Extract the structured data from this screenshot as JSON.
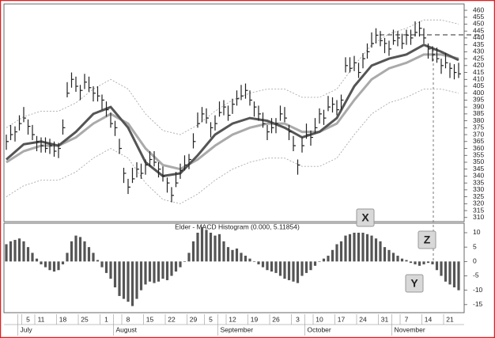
{
  "chart_data": [
    {
      "type": "ohlc",
      "x": [
        0,
        1,
        2,
        3,
        4,
        5,
        6,
        7,
        8,
        9,
        10,
        11,
        12,
        13,
        14,
        15,
        16,
        17,
        18,
        19,
        20,
        21,
        22,
        23,
        24,
        25,
        26,
        27,
        28,
        29,
        30,
        31,
        32,
        33,
        34,
        35,
        36,
        37,
        38,
        39,
        40,
        41,
        42,
        43,
        44,
        45,
        46,
        47,
        48,
        49,
        50,
        51,
        52,
        53,
        54,
        55,
        56,
        57,
        58,
        59,
        60,
        61,
        62,
        63,
        64,
        65,
        66,
        67,
        68,
        69,
        70,
        71,
        72,
        73,
        74,
        75,
        76,
        77,
        78,
        79,
        80,
        81,
        82,
        83,
        84,
        85,
        86,
        87,
        88,
        89,
        90,
        91,
        92,
        93,
        94,
        95,
        96,
        97,
        98,
        99,
        100,
        101,
        102,
        103,
        104
      ],
      "high": [
        370,
        377,
        376,
        384,
        390,
        381,
        377,
        369,
        368,
        368,
        367,
        365,
        364,
        381,
        408,
        415,
        412,
        406,
        414,
        412,
        405,
        405,
        399,
        394,
        386,
        380,
        367,
        346,
        338,
        346,
        350,
        349,
        352,
        358,
        358,
        350,
        347,
        339,
        332,
        343,
        349,
        355,
        356,
        371,
        386,
        390,
        389,
        379,
        384,
        394,
        395,
        391,
        396,
        402,
        406,
        407,
        402,
        394,
        391,
        386,
        377,
        382,
        382,
        391,
        390,
        377,
        369,
        352,
        368,
        378,
        373,
        382,
        389,
        388,
        398,
        397,
        395,
        399,
        426,
        426,
        427,
        422,
        429,
        436,
        444,
        447,
        445,
        440,
        438,
        446,
        445,
        443,
        446,
        446,
        452,
        452,
        447,
        436,
        434,
        433,
        425,
        429,
        422,
        421,
        422
      ],
      "low": [
        359,
        366,
        365,
        373,
        379,
        370,
        366,
        358,
        357,
        357,
        356,
        354,
        353,
        370,
        397,
        404,
        401,
        395,
        403,
        401,
        394,
        394,
        388,
        383,
        375,
        369,
        356,
        335,
        327,
        335,
        339,
        338,
        341,
        347,
        347,
        339,
        336,
        328,
        321,
        332,
        338,
        344,
        345,
        360,
        375,
        379,
        378,
        368,
        373,
        383,
        384,
        380,
        385,
        391,
        395,
        396,
        391,
        383,
        380,
        375,
        366,
        371,
        371,
        380,
        379,
        366,
        358,
        341,
        357,
        367,
        362,
        371,
        378,
        377,
        387,
        386,
        384,
        388,
        415,
        415,
        416,
        411,
        418,
        425,
        433,
        436,
        434,
        429,
        427,
        435,
        434,
        432,
        435,
        435,
        441,
        441,
        436,
        425,
        423,
        422,
        414,
        418,
        411,
        410,
        411
      ],
      "close": [
        365,
        370,
        372,
        378,
        382,
        376,
        370,
        365,
        362,
        360,
        362,
        358,
        360,
        375,
        400,
        410,
        405,
        402,
        408,
        404,
        400,
        398,
        395,
        388,
        378,
        375,
        360,
        342,
        332,
        338,
        345,
        342,
        348,
        352,
        350,
        345,
        340,
        335,
        326,
        335,
        344,
        348,
        352,
        365,
        378,
        385,
        382,
        375,
        378,
        386,
        390,
        384,
        392,
        396,
        398,
        402,
        395,
        390,
        385,
        378,
        372,
        375,
        378,
        385,
        382,
        372,
        362,
        348,
        362,
        370,
        368,
        375,
        385,
        382,
        390,
        392,
        388,
        395,
        420,
        418,
        422,
        415,
        425,
        430,
        436,
        442,
        438,
        436,
        432,
        438,
        440,
        436,
        442,
        440,
        444,
        447,
        440,
        432,
        428,
        425,
        420,
        422,
        418,
        415,
        414
      ],
      "color": "#222",
      "series": [
        {
          "color": "#aaa",
          "style": "dotted",
          "x": [
            0,
            4,
            8,
            12,
            16,
            20,
            24,
            28,
            32,
            36,
            40,
            44,
            48,
            52,
            56,
            60,
            64,
            68,
            72,
            76,
            80,
            84,
            88,
            92,
            96,
            100,
            104
          ],
          "values": [
            375,
            383,
            387,
            387,
            393,
            403,
            410,
            403,
            385,
            373,
            370,
            377,
            387,
            395,
            400,
            403,
            403,
            397,
            397,
            403,
            420,
            435,
            443,
            447,
            453,
            453,
            450
          ]
        },
        {
          "color": "#aaa",
          "style": "dotted",
          "x": [
            0,
            4,
            8,
            12,
            16,
            20,
            24,
            28,
            32,
            36,
            40,
            44,
            48,
            52,
            56,
            60,
            64,
            68,
            72,
            76,
            80,
            84,
            88,
            92,
            96,
            100,
            104
          ],
          "values": [
            325,
            333,
            337,
            337,
            343,
            353,
            360,
            353,
            335,
            323,
            320,
            327,
            337,
            345,
            350,
            353,
            353,
            347,
            347,
            353,
            370,
            385,
            393,
            397,
            403,
            403,
            400
          ]
        },
        {
          "color": "#aaa",
          "style": "solid",
          "x": [
            0,
            4,
            8,
            12,
            16,
            20,
            24,
            28,
            32,
            36,
            40,
            44,
            48,
            52,
            56,
            60,
            64,
            68,
            72,
            76,
            80,
            84,
            88,
            92,
            96,
            100,
            104
          ],
          "values": [
            350,
            358,
            362,
            362,
            368,
            378,
            385,
            378,
            360,
            348,
            345,
            352,
            362,
            370,
            375,
            378,
            378,
            372,
            372,
            378,
            395,
            410,
            418,
            422,
            428,
            428,
            425
          ]
        },
        {
          "color": "#555",
          "style": "solid",
          "x": [
            0,
            4,
            8,
            12,
            16,
            20,
            24,
            28,
            32,
            36,
            40,
            44,
            48,
            52,
            56,
            60,
            64,
            68,
            72,
            76,
            80,
            84,
            88,
            92,
            96,
            100,
            104
          ],
          "values": [
            352,
            363,
            365,
            362,
            372,
            385,
            390,
            375,
            350,
            340,
            342,
            355,
            370,
            378,
            382,
            380,
            375,
            368,
            372,
            382,
            405,
            420,
            425,
            428,
            435,
            430,
            424
          ]
        }
      ],
      "xlim": [
        0,
        105
      ],
      "xticks": [
        {
          "value": 5,
          "label": "5"
        },
        {
          "value": 8,
          "label": "11"
        },
        {
          "value": 13,
          "label": "18"
        },
        {
          "value": 18,
          "label": "25"
        },
        {
          "value": 23,
          "label": "1"
        },
        {
          "value": 28,
          "label": "8"
        },
        {
          "value": 33,
          "label": "15"
        },
        {
          "value": 38,
          "label": "22"
        },
        {
          "value": 43,
          "label": "29"
        },
        {
          "value": 47,
          "label": "5"
        },
        {
          "value": 52,
          "label": "12"
        },
        {
          "value": 57,
          "label": "19"
        },
        {
          "value": 62,
          "label": "26"
        },
        {
          "value": 67,
          "label": "3"
        },
        {
          "value": 72,
          "label": "10"
        },
        {
          "value": 77,
          "label": "17"
        },
        {
          "value": 82,
          "label": "24"
        },
        {
          "value": 87,
          "label": "31"
        },
        {
          "value": 92,
          "label": "7"
        },
        {
          "value": 97,
          "label": "14"
        },
        {
          "value": 102,
          "label": "21"
        }
      ],
      "months": [
        {
          "value": 1,
          "label": "July"
        },
        {
          "value": 23,
          "label": "August"
        },
        {
          "value": 47,
          "label": "September"
        },
        {
          "value": 67,
          "label": "October"
        },
        {
          "value": 87,
          "label": "November"
        }
      ],
      "ylim": [
        307,
        464.6
      ],
      "yticks": [
        310,
        315,
        320,
        325,
        330,
        335,
        340,
        345,
        350,
        355,
        360,
        365,
        370,
        375,
        380,
        385,
        390,
        395,
        400,
        405,
        410,
        415,
        420,
        425,
        430,
        435,
        440,
        445,
        450,
        455,
        460
      ],
      "annotations": [
        "X",
        "Z",
        "Y"
      ]
    },
    {
      "type": "bar",
      "title": "Elder - MACD Histogram (0.000, 5.11854)",
      "x": [
        0,
        1,
        2,
        3,
        4,
        5,
        6,
        7,
        8,
        9,
        10,
        11,
        12,
        13,
        14,
        15,
        16,
        17,
        18,
        19,
        20,
        21,
        22,
        23,
        24,
        25,
        26,
        27,
        28,
        29,
        30,
        31,
        32,
        33,
        34,
        35,
        36,
        37,
        38,
        39,
        40,
        41,
        42,
        43,
        44,
        45,
        46,
        47,
        48,
        49,
        50,
        51,
        52,
        53,
        54,
        55,
        56,
        57,
        58,
        59,
        60,
        61,
        62,
        63,
        64,
        65,
        66,
        67,
        68,
        69,
        70,
        71,
        72,
        73,
        74,
        75,
        76,
        77,
        78,
        79,
        80,
        81,
        82,
        83,
        84,
        85,
        86,
        87,
        88,
        89,
        90,
        91,
        92,
        93,
        94,
        95,
        96,
        97,
        98,
        99,
        100,
        101,
        102,
        103,
        104
      ],
      "values": [
        6,
        7,
        7.5,
        8,
        7,
        5,
        3,
        1,
        -1,
        -2,
        -3,
        -3.5,
        -3,
        -1,
        3,
        7,
        9,
        8.5,
        7,
        5,
        3,
        0.5,
        -2,
        -4,
        -6,
        -9,
        -12,
        -13,
        -14,
        -15.5,
        -13,
        -10,
        -8,
        -7,
        -7.5,
        -7,
        -6,
        -6.5,
        -5,
        -3.5,
        -2,
        0,
        3,
        7,
        10,
        12,
        11,
        10,
        9,
        9.5,
        7,
        5,
        4,
        4.5,
        3,
        2,
        1,
        0,
        -1,
        -2,
        -3,
        -3.5,
        -4,
        -5,
        -6,
        -6.5,
        -7,
        -7.5,
        -5,
        -4,
        -3,
        -1.5,
        0,
        1,
        2,
        4,
        6,
        7,
        9,
        9.5,
        10,
        10,
        10,
        9.5,
        9,
        8,
        7,
        5,
        4,
        3,
        2,
        1,
        0.5,
        -0.5,
        -1,
        -1.5,
        -1,
        -0.5,
        -1,
        -3,
        -5,
        -7,
        -8,
        -9,
        -10
      ],
      "color": "#555",
      "ylim": [
        -17.8,
        13.3
      ],
      "yticks": [
        10,
        5,
        0,
        -5,
        -10,
        -15
      ]
    }
  ]
}
